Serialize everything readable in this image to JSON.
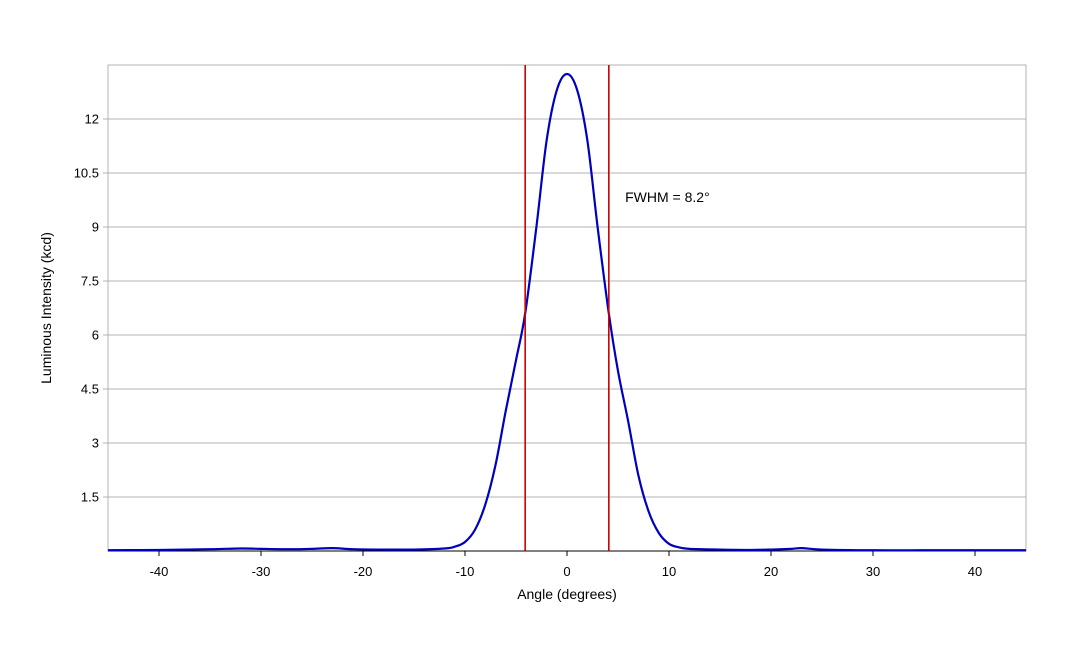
{
  "chart_data": {
    "type": "line",
    "title": "",
    "xlabel": "Angle (degrees)",
    "ylabel": "Luminous Intensity (kcd)",
    "xlim": [
      -45,
      45
    ],
    "ylim": [
      0,
      13.5
    ],
    "x_ticks": [
      -40,
      -30,
      -20,
      -10,
      0,
      10,
      20,
      30,
      40
    ],
    "x_tick_labels": [
      "-40",
      "-30",
      "-20",
      "-10",
      "0",
      "10",
      "20",
      "30",
      "40"
    ],
    "y_ticks": [
      1.5,
      3,
      4.5,
      6,
      7.5,
      9,
      10.5,
      12
    ],
    "y_tick_labels": [
      "1.5",
      "3",
      "4.5",
      "6",
      "7.5",
      "9",
      "10.5",
      "12"
    ],
    "grid": {
      "horizontal": true,
      "vertical": false
    },
    "legend": "none",
    "series": [
      {
        "color": "#0000c0",
        "x": [
          -45,
          -40,
          -35,
          -32,
          -30,
          -27,
          -25,
          -23,
          -21,
          -18,
          -15,
          -12,
          -11,
          -10,
          -9,
          -8,
          -7,
          -6,
          -5,
          -4.1,
          -3,
          -2,
          -1,
          0,
          1,
          2,
          3,
          4.1,
          5,
          6,
          7,
          8,
          9,
          10,
          11,
          12,
          15,
          18,
          20,
          22,
          23,
          25,
          30,
          35,
          40,
          45
        ],
        "y": [
          0.02,
          0.03,
          0.05,
          0.07,
          0.06,
          0.05,
          0.06,
          0.08,
          0.05,
          0.04,
          0.04,
          0.07,
          0.12,
          0.25,
          0.6,
          1.3,
          2.4,
          3.9,
          5.3,
          6.6,
          9.0,
          11.4,
          12.8,
          13.25,
          12.8,
          11.4,
          9.0,
          6.6,
          5.0,
          3.6,
          2.1,
          1.1,
          0.5,
          0.2,
          0.1,
          0.06,
          0.04,
          0.03,
          0.04,
          0.06,
          0.08,
          0.04,
          0.02,
          0.02,
          0.02,
          0.02
        ]
      }
    ],
    "vertical_markers": [
      {
        "x": -4.1,
        "color": "#cc0000"
      },
      {
        "x": 4.1,
        "color": "#cc0000"
      }
    ],
    "annotations": [
      {
        "text": "FWHM = 8.2°",
        "x": 5.7,
        "y": 9.7
      }
    ],
    "colors": {
      "grid": "#b3b3b3",
      "frame": "#b3b3b3",
      "axis": "#000000"
    }
  }
}
